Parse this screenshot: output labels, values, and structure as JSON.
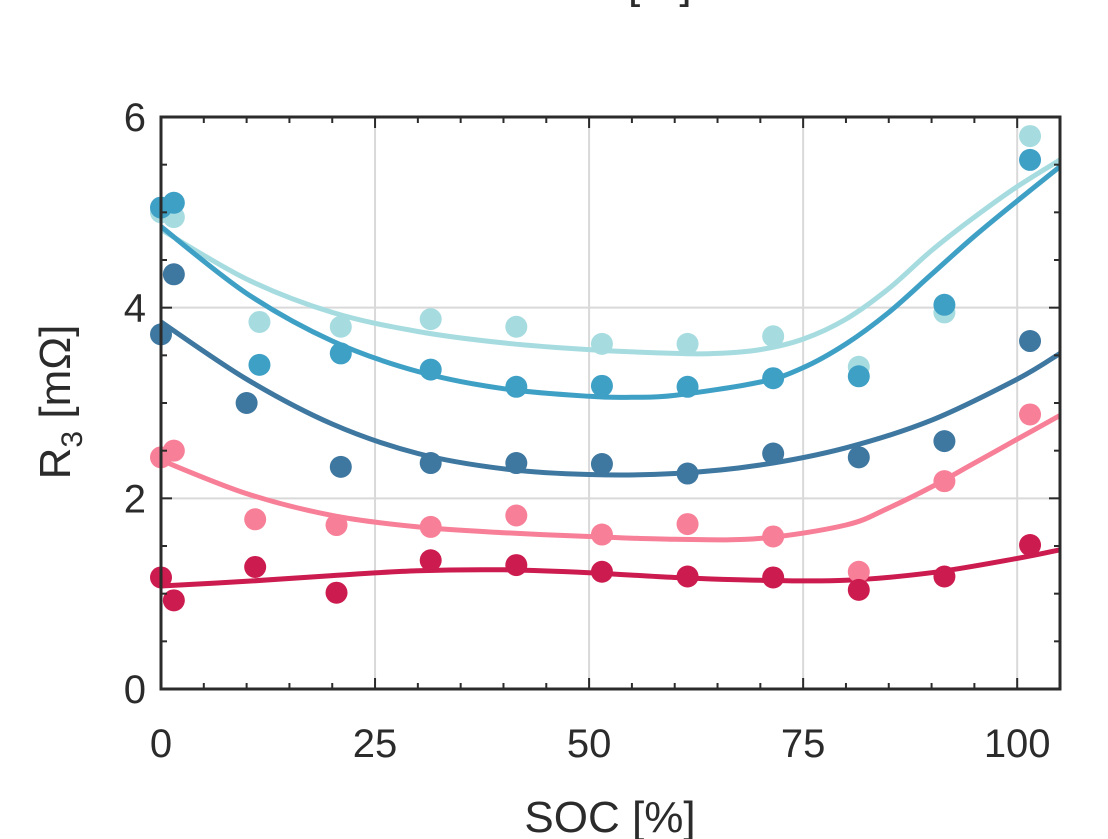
{
  "chart_data": {
    "type": "scatter",
    "top_cut_label": "SOC [%]",
    "xlabel": "SOC [%]",
    "ylabel_main": "R",
    "ylabel_sub": "3",
    "ylabel_unit": " [mΩ]",
    "xlim": [
      0,
      105
    ],
    "ylim": [
      0,
      6
    ],
    "xticks": [
      0,
      25,
      50,
      75,
      100
    ],
    "yticks": [
      0,
      2,
      4,
      6
    ],
    "grid": true,
    "series": [
      {
        "color": "#a6dce0",
        "points": [
          [
            0,
            5.0
          ],
          [
            1.5,
            4.95
          ],
          [
            11.5,
            3.85
          ],
          [
            21,
            3.8
          ],
          [
            31.5,
            3.88
          ],
          [
            41.5,
            3.8
          ],
          [
            51.5,
            3.62
          ],
          [
            61.5,
            3.62
          ],
          [
            71.5,
            3.7
          ],
          [
            81.5,
            3.38
          ],
          [
            91.5,
            3.95
          ],
          [
            101.5,
            5.8
          ]
        ],
        "fit": [
          [
            0,
            4.82
          ],
          [
            10,
            4.3
          ],
          [
            20,
            3.95
          ],
          [
            30,
            3.75
          ],
          [
            40,
            3.63
          ],
          [
            50,
            3.56
          ],
          [
            60,
            3.52
          ],
          [
            65,
            3.52
          ],
          [
            70,
            3.56
          ],
          [
            75,
            3.67
          ],
          [
            80,
            3.88
          ],
          [
            85,
            4.2
          ],
          [
            90,
            4.6
          ],
          [
            95,
            4.95
          ],
          [
            100,
            5.27
          ],
          [
            105,
            5.55
          ]
        ]
      },
      {
        "color": "#3fa0c6",
        "points": [
          [
            0,
            5.05
          ],
          [
            1.5,
            5.1
          ],
          [
            11.5,
            3.4
          ],
          [
            21,
            3.52
          ],
          [
            31.5,
            3.35
          ],
          [
            41.5,
            3.17
          ],
          [
            51.5,
            3.18
          ],
          [
            61.5,
            3.17
          ],
          [
            71.5,
            3.26
          ],
          [
            81.5,
            3.28
          ],
          [
            91.5,
            4.03
          ],
          [
            101.5,
            5.55
          ]
        ],
        "fit": [
          [
            0,
            4.85
          ],
          [
            10,
            4.15
          ],
          [
            20,
            3.65
          ],
          [
            30,
            3.33
          ],
          [
            40,
            3.15
          ],
          [
            50,
            3.07
          ],
          [
            55,
            3.06
          ],
          [
            60,
            3.08
          ],
          [
            70,
            3.22
          ],
          [
            75,
            3.37
          ],
          [
            80,
            3.62
          ],
          [
            85,
            3.95
          ],
          [
            90,
            4.35
          ],
          [
            95,
            4.75
          ],
          [
            100,
            5.12
          ],
          [
            105,
            5.48
          ]
        ]
      },
      {
        "color": "#3e77a0",
        "points": [
          [
            0,
            3.72
          ],
          [
            1.5,
            4.35
          ],
          [
            10,
            3.0
          ],
          [
            21,
            2.33
          ],
          [
            31.5,
            2.37
          ],
          [
            41.5,
            2.37
          ],
          [
            51.5,
            2.36
          ],
          [
            61.5,
            2.26
          ],
          [
            71.5,
            2.47
          ],
          [
            81.5,
            2.43
          ],
          [
            91.5,
            2.6
          ],
          [
            101.5,
            3.65
          ]
        ],
        "fit": [
          [
            0,
            3.85
          ],
          [
            10,
            3.25
          ],
          [
            20,
            2.78
          ],
          [
            30,
            2.47
          ],
          [
            40,
            2.31
          ],
          [
            50,
            2.25
          ],
          [
            60,
            2.26
          ],
          [
            70,
            2.35
          ],
          [
            80,
            2.53
          ],
          [
            90,
            2.82
          ],
          [
            100,
            3.25
          ],
          [
            105,
            3.52
          ]
        ]
      },
      {
        "color": "#f77f97",
        "points": [
          [
            0,
            2.43
          ],
          [
            1.5,
            2.5
          ],
          [
            11,
            1.78
          ],
          [
            20.5,
            1.72
          ],
          [
            31.5,
            1.7
          ],
          [
            41.5,
            1.82
          ],
          [
            51.5,
            1.62
          ],
          [
            61.5,
            1.73
          ],
          [
            71.5,
            1.6
          ],
          [
            81.5,
            1.23
          ],
          [
            91.5,
            2.18
          ],
          [
            101.5,
            2.88
          ]
        ],
        "fit": [
          [
            0,
            2.4
          ],
          [
            10,
            2.05
          ],
          [
            20,
            1.82
          ],
          [
            30,
            1.7
          ],
          [
            40,
            1.64
          ],
          [
            50,
            1.6
          ],
          [
            60,
            1.57
          ],
          [
            70,
            1.58
          ],
          [
            80,
            1.72
          ],
          [
            85,
            1.9
          ],
          [
            90,
            2.12
          ],
          [
            95,
            2.37
          ],
          [
            100,
            2.62
          ],
          [
            105,
            2.87
          ]
        ]
      },
      {
        "color": "#cc1b4e",
        "points": [
          [
            0,
            1.17
          ],
          [
            1.5,
            0.93
          ],
          [
            11,
            1.28
          ],
          [
            20.5,
            1.01
          ],
          [
            31.5,
            1.35
          ],
          [
            41.5,
            1.3
          ],
          [
            51.5,
            1.23
          ],
          [
            61.5,
            1.18
          ],
          [
            71.5,
            1.17
          ],
          [
            81.5,
            1.04
          ],
          [
            91.5,
            1.18
          ],
          [
            101.5,
            1.51
          ]
        ],
        "fit": [
          [
            0,
            1.08
          ],
          [
            10,
            1.13
          ],
          [
            20,
            1.19
          ],
          [
            30,
            1.24
          ],
          [
            40,
            1.25
          ],
          [
            50,
            1.22
          ],
          [
            60,
            1.17
          ],
          [
            70,
            1.14
          ],
          [
            80,
            1.14
          ],
          [
            90,
            1.22
          ],
          [
            100,
            1.37
          ],
          [
            105,
            1.46
          ]
        ]
      }
    ]
  }
}
